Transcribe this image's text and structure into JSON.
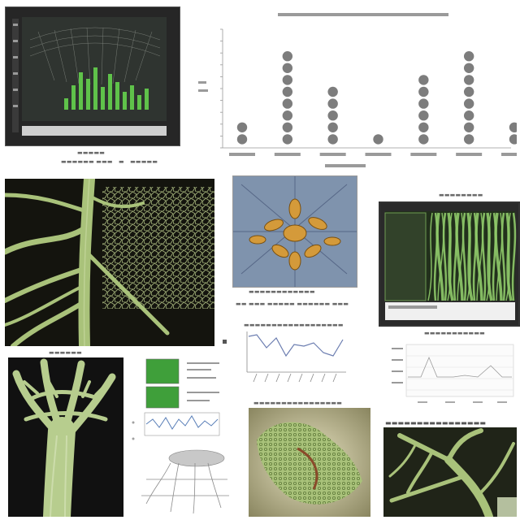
{
  "chart_data": {
    "type": "scatter",
    "title": "",
    "xlabel": "",
    "ylabel": "",
    "yticks": [
      0,
      1,
      2,
      3,
      4,
      5,
      6,
      7,
      8,
      9,
      10
    ],
    "ylim": [
      0,
      10
    ],
    "categories": [
      "",
      "",
      "",
      "",
      "",
      "",
      ""
    ],
    "values": [
      2,
      8,
      5,
      1,
      6,
      8,
      2
    ],
    "marker_color": "#7d7d7d"
  },
  "colors": {
    "vein_green": "#a9c27a",
    "dark_bg": "#14140e",
    "bar_green": "#5fc24a"
  },
  "panels": {
    "monitor_top_left": {
      "caption": ""
    },
    "bottom_left_label": {
      "caption": ""
    },
    "line_chart_small": {
      "caption": ""
    },
    "right_screen": {
      "caption": ""
    }
  }
}
